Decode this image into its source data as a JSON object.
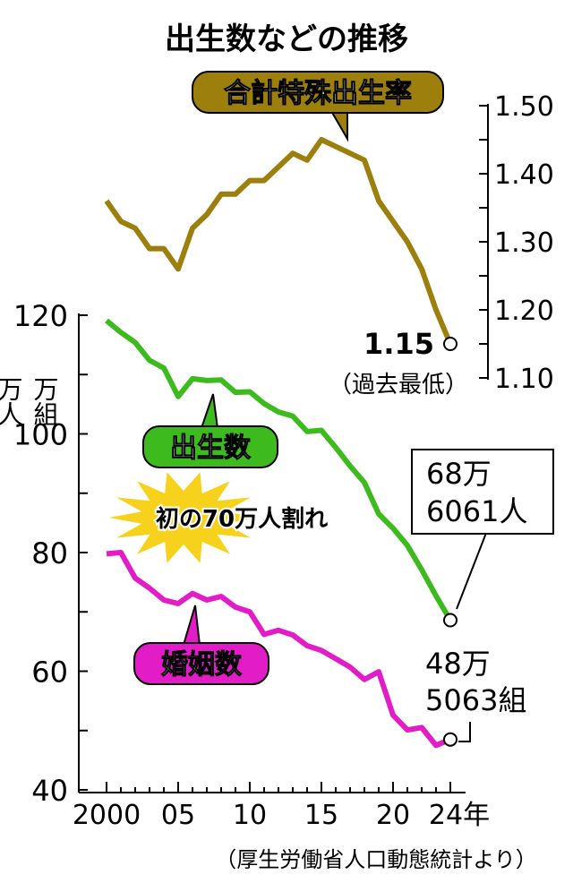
{
  "chart_data": {
    "type": "line",
    "title": "出生数などの推移",
    "source": "（厚生労働省人口動態統計より）",
    "x": [
      2000,
      2001,
      2002,
      2003,
      2004,
      2005,
      2006,
      2007,
      2008,
      2009,
      2010,
      2011,
      2012,
      2013,
      2014,
      2015,
      2016,
      2017,
      2018,
      2019,
      2020,
      2021,
      2022,
      2023,
      2024
    ],
    "x_ticks": [
      "2000",
      "05",
      "10",
      "15",
      "20",
      "24年"
    ],
    "x_tick_values": [
      2000,
      2005,
      2010,
      2015,
      2020,
      2024
    ],
    "left_axis": {
      "unit_labels": [
        "万人",
        "万組"
      ],
      "ticks": [
        "120",
        "100",
        "80",
        "60",
        "40"
      ],
      "range": [
        40,
        120
      ]
    },
    "right_axis": {
      "ticks": [
        "1.50",
        "1.40",
        "1.30",
        "1.20",
        "1.10"
      ],
      "range": [
        1.1,
        1.5
      ]
    },
    "series": [
      {
        "name": "合計特殊出生率",
        "axis": "right",
        "color": "#9c7f0c",
        "values": [
          1.36,
          1.33,
          1.32,
          1.29,
          1.29,
          1.26,
          1.32,
          1.34,
          1.37,
          1.37,
          1.39,
          1.39,
          1.41,
          1.43,
          1.42,
          1.45,
          1.44,
          1.43,
          1.42,
          1.36,
          1.33,
          1.3,
          1.26,
          1.2,
          1.15
        ]
      },
      {
        "name": "出生数",
        "axis": "left",
        "color": "#3dbb1e",
        "values": [
          119.1,
          117.1,
          115.4,
          112.4,
          111.1,
          106.3,
          109.3,
          109.0,
          109.1,
          107.0,
          107.1,
          105.1,
          103.7,
          103.0,
          100.4,
          100.6,
          97.7,
          94.6,
          91.8,
          86.5,
          84.1,
          81.2,
          77.1,
          72.7,
          68.6
        ]
      },
      {
        "name": "婚姻数",
        "axis": "left",
        "color": "#e21cc6",
        "values": [
          79.8,
          80.0,
          75.7,
          74.0,
          72.0,
          71.4,
          73.1,
          72.0,
          72.6,
          70.8,
          70.0,
          66.2,
          66.9,
          66.1,
          64.3,
          63.5,
          62.1,
          60.7,
          58.6,
          59.9,
          52.6,
          50.1,
          50.5,
          47.5,
          48.5
        ]
      }
    ],
    "annotations": {
      "tfr_value": "1.15",
      "tfr_note": "（過去最低）",
      "births_line1": "68万",
      "births_line2": "6061人",
      "marriages_line1": "48万",
      "marriages_line2": "5063組",
      "burst": "初の70万人割れ"
    }
  }
}
